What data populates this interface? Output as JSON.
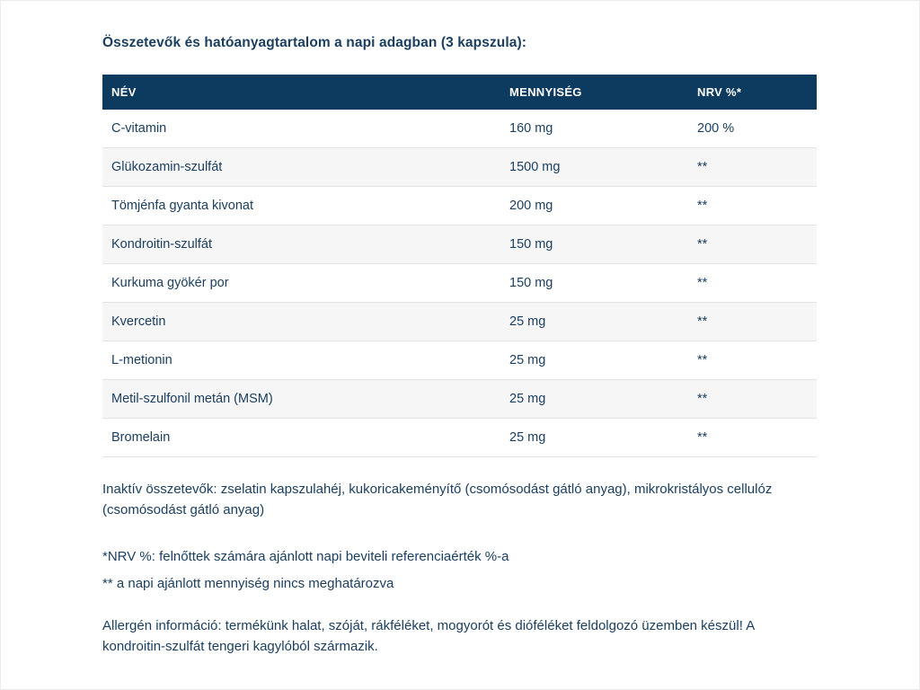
{
  "page": {
    "title": "Összetevők és hatóanyagtartalom a napi adagban (3 kapszula):"
  },
  "table": {
    "headers": {
      "name": "NÉV",
      "amount": "MENNYISÉG",
      "nrv": "NRV %*"
    },
    "rows": [
      {
        "name": "C-vitamin",
        "amount": "160 mg",
        "nrv": "200 %"
      },
      {
        "name": "Glükozamin-szulfát",
        "amount": "1500 mg",
        "nrv": "**"
      },
      {
        "name": "Tömjénfa gyanta kivonat",
        "amount": "200 mg",
        "nrv": "**"
      },
      {
        "name": "Kondroitin-szulfát",
        "amount": "150 mg",
        "nrv": "**"
      },
      {
        "name": "Kurkuma gyökér por",
        "amount": "150 mg",
        "nrv": "**"
      },
      {
        "name": "Kvercetin",
        "amount": "25 mg",
        "nrv": "**"
      },
      {
        "name": "L-metionin",
        "amount": "25 mg",
        "nrv": "**"
      },
      {
        "name": "Metil-szulfonil metán (MSM)",
        "amount": "25 mg",
        "nrv": "**"
      },
      {
        "name": "Bromelain",
        "amount": "25 mg",
        "nrv": "**"
      }
    ]
  },
  "notes": {
    "inactive": "Inaktív összetevők: zselatin kapszulahéj, kukoricakeményítő (csomósodást gátló anyag), mikrokristályos cellulóz (csomósodást gátló anyag)",
    "nrv_definition": "*NRV %: felnőttek számára ajánlott napi beviteli referenciaérték %-a",
    "nrv_undefined": "** a napi ajánlott mennyiség nincs meghatározva",
    "allergen": "Allergén információ: termékünk halat, szóját, rákféléket, mogyorót és dióféléket feldolgozó üzemben készül! A kondroitin-szulfát tengeri kagylóból származik."
  },
  "colors": {
    "header_bg": "#0d3a5f",
    "text": "#1b3f60",
    "row_alt": "#f6f6f6",
    "row_border": "#e3e3e3"
  }
}
